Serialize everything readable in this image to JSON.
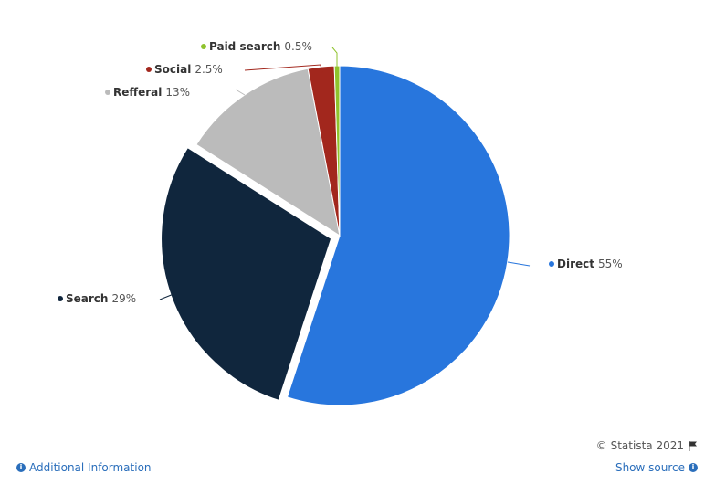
{
  "chart_data": {
    "type": "pie",
    "slices": [
      {
        "label": "Direct",
        "value": 55,
        "value_label": "55%",
        "color": "#2876dd"
      },
      {
        "label": "Search",
        "value": 29,
        "value_label": "29%",
        "color": "#10263d"
      },
      {
        "label": "Refferal",
        "value": 13,
        "value_label": "13%",
        "color": "#bbbbbb"
      },
      {
        "label": "Social",
        "value": 2.5,
        "value_label": "2.5%",
        "color": "#a2271d"
      },
      {
        "label": "Paid search",
        "value": 0.5,
        "value_label": "0.5%",
        "color": "#8fc32d"
      }
    ],
    "exploded_slice": "Search"
  },
  "credits": {
    "text": "© Statista 2021",
    "flag_icon": "flag-icon"
  },
  "footer": {
    "additional_info": "Additional Information",
    "show_source": "Show source"
  }
}
